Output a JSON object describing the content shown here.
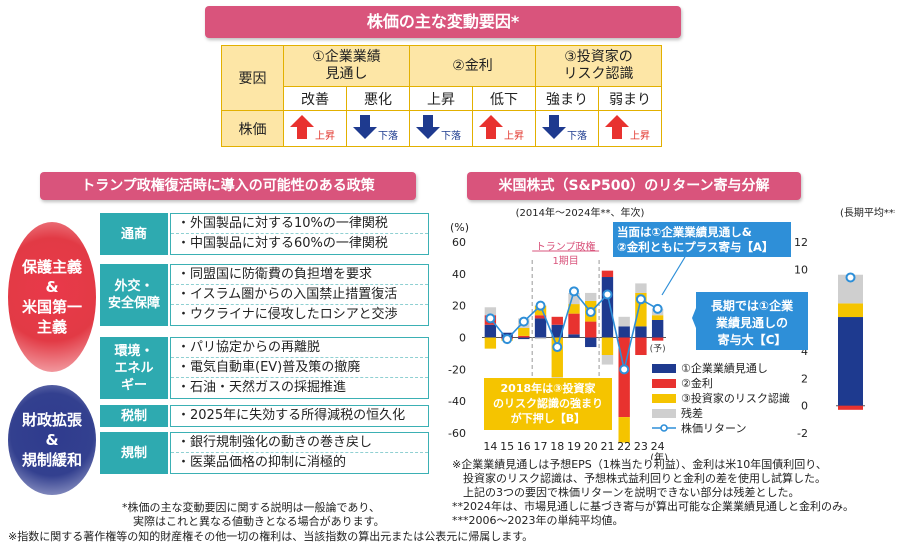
{
  "factors": {
    "title": "株価の主な変動要因*",
    "row_header": "要因",
    "price_label": "株価",
    "groups": [
      {
        "label_lines": [
          "①企業業績",
          "見通し"
        ],
        "cols": [
          {
            "label": "改善",
            "dir": "up",
            "note": "上昇"
          },
          {
            "label": "悪化",
            "dir": "down",
            "note": "下落"
          }
        ]
      },
      {
        "label_lines": [
          "②金利"
        ],
        "cols": [
          {
            "label": "上昇",
            "dir": "down",
            "note": "下落"
          },
          {
            "label": "低下",
            "dir": "up",
            "note": "上昇"
          }
        ]
      },
      {
        "label_lines": [
          "③投資家の",
          "リスク認識"
        ],
        "cols": [
          {
            "label": "強まり",
            "dir": "down",
            "note": "下落"
          },
          {
            "label": "弱まり",
            "dir": "up",
            "note": "上昇"
          }
        ]
      }
    ],
    "colors": {
      "up": "#e8322f",
      "down": "#1e3a8f"
    }
  },
  "policy": {
    "title": "トランプ政権復活時に導入の可能性のある政策",
    "left_labels": [
      [
        "保護主義",
        "&",
        "米国第一",
        "主義"
      ],
      [
        "財政拡張",
        "&",
        "規制緩和"
      ]
    ],
    "rows": [
      {
        "label": [
          "通商"
        ],
        "items": [
          "・外国製品に対する10%の一律関税",
          "・中国製品に対する60%の一律関税"
        ]
      },
      {
        "label": [
          "外交・",
          "安全保障"
        ],
        "items": [
          "・同盟国に防衛費の負担増を要求",
          "・イスラム圏からの入国禁止措置復活",
          "・ウクライナに侵攻したロシアと交渉"
        ]
      },
      {
        "label": [
          "環境・",
          "エネル",
          "ギー"
        ],
        "items": [
          "・パリ協定からの再離脱",
          "・電気自動車(EV)普及策の撤廃",
          "・石油・天然ガスの採掘推進"
        ]
      },
      {
        "label": [
          "税制"
        ],
        "items": [
          "・2025年に失効する所得減税の恒久化"
        ]
      },
      {
        "label": [
          "規制"
        ],
        "items": [
          "・銀行規制強化の動きの巻き戻し",
          "・医薬品価格の抑制に消極的"
        ]
      }
    ]
  },
  "chart_title": "米国株式（S&P500）のリターン寄与分解",
  "chart_data": {
    "type": "bar",
    "subtitle": "(2014年～2024年**、年次)",
    "y_unit": "(%)",
    "y_unit_right": "(長期平均***)",
    "x_unit": "(年)",
    "ylim": [
      -60,
      60
    ],
    "ylim_right": [
      -2,
      12
    ],
    "categories": [
      "14",
      "15",
      "16",
      "17",
      "18",
      "19",
      "20",
      "21",
      "22",
      "23",
      "24"
    ],
    "series": [
      {
        "name": "①企業業績見通し",
        "color": "#1e3a8f",
        "values": [
          8,
          3,
          -1,
          12,
          8,
          2,
          -6,
          38,
          7,
          7,
          11
        ]
      },
      {
        "name": "②金利",
        "color": "#e8322f",
        "values": [
          6,
          -1,
          1,
          2,
          5,
          13,
          10,
          4,
          -50,
          -11,
          -2
        ]
      },
      {
        "name": "③投資家のリスク認識",
        "color": "#f5c400",
        "values": [
          -7,
          -1,
          5,
          6,
          -25,
          6,
          13,
          -11,
          -16,
          21,
          3
        ]
      },
      {
        "name": "残差",
        "color": "#cfcfcf",
        "values": [
          5,
          0,
          6,
          -1,
          -2,
          7,
          5,
          -6,
          6,
          6,
          4
        ]
      }
    ],
    "line": {
      "name": "株価リターン",
      "color": "#2e8fd8",
      "values": [
        12,
        -1,
        10,
        20,
        -6,
        29,
        16,
        27,
        -20,
        24,
        18
      ]
    },
    "forecast_label": "(予)",
    "long_avg": {
      "values": [
        6.5,
        -0.3,
        1.0,
        2.1
      ],
      "return": 9.4
    },
    "period_label": [
      "トランプ政権",
      "1期目"
    ],
    "callout_a": [
      "当面は①企業業績見通し&",
      "②金利ともにプラス寄与【A】"
    ],
    "callout_b": [
      "2018年は③投資家",
      "のリスク認識の強まり",
      "が下押し【B】"
    ],
    "callout_c": [
      "長期では①企業",
      "業績見通しの",
      "寄与大【C】"
    ],
    "notes": [
      "※企業業績見通しは予想EPS（1株当たり利益）、金利は米10年国債利回り、",
      "　投資家のリスク認識は、予想株式益利回りと金利の差を使用し試算した。",
      "　上記の3つの要因で株価リターンを説明できない部分は残差とした。",
      "**2024年は、市場見通しに基づき寄与が算出可能な企業業績見通しと金利のみ。",
      "***2006～2023年の単純平均値。"
    ]
  },
  "footnotes": [
    "*株価の主な変動要因に関する説明は一般論であり、",
    "　実際はこれと異なる値動きとなる場合があります。",
    "※指数に関する著作権等の知的財産権その他一切の権利は、当該指数の算出元または公表元に帰属します。"
  ]
}
